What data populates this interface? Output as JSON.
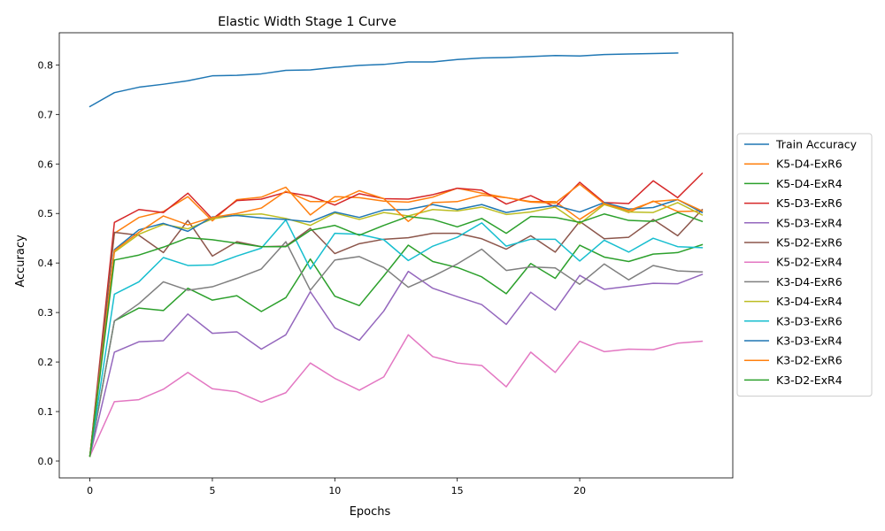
{
  "chart_data": {
    "type": "line",
    "title": "Elastic Width Stage 1 Curve",
    "xlabel": "Epochs",
    "ylabel": "Accuracy",
    "xlim": [
      -1.25,
      26.25
    ],
    "ylim": [
      -0.034,
      0.865
    ],
    "xticks": [
      0,
      5,
      10,
      15,
      20
    ],
    "yticks": [
      0.0,
      0.1,
      0.2,
      0.3,
      0.4,
      0.5,
      0.6,
      0.7,
      0.8
    ],
    "ytick_labels": [
      "0.0",
      "0.1",
      "0.2",
      "0.3",
      "0.4",
      "0.5",
      "0.6",
      "0.7",
      "0.8"
    ],
    "grid": false,
    "legend_position": "center-right-outside",
    "series": [
      {
        "name": "Train Accuracy",
        "color": "#1f77b4",
        "x": [
          0,
          1,
          2,
          3,
          4,
          5,
          6,
          7,
          8,
          9,
          10,
          11,
          12,
          13,
          14,
          15,
          16,
          17,
          18,
          19,
          20,
          21,
          22,
          23,
          24
        ],
        "values": [
          0.716,
          0.744,
          0.755,
          0.761,
          0.768,
          0.778,
          0.779,
          0.782,
          0.789,
          0.79,
          0.795,
          0.799,
          0.801,
          0.806,
          0.806,
          0.811,
          0.814,
          0.815,
          0.817,
          0.819,
          0.818,
          0.821,
          0.822,
          0.823,
          0.824
        ]
      },
      {
        "name": "K5-D4-ExR6",
        "color": "#ff7f0e",
        "x": [
          0,
          1,
          2,
          3,
          4,
          5,
          6,
          7,
          8,
          9,
          10,
          11,
          12,
          13,
          14,
          15,
          16,
          17,
          18,
          19,
          20,
          21,
          22,
          23,
          24,
          25
        ],
        "values": [
          0.01,
          0.46,
          0.492,
          0.504,
          0.534,
          0.485,
          0.528,
          0.533,
          0.553,
          0.497,
          0.534,
          0.532,
          0.525,
          0.523,
          0.533,
          0.551,
          0.541,
          0.532,
          0.524,
          0.524,
          0.488,
          0.52,
          0.502,
          0.525,
          0.504,
          0.505
        ]
      },
      {
        "name": "K5-D4-ExR4",
        "color": "#2ca02c",
        "x": [
          0,
          1,
          2,
          3,
          4,
          5,
          6,
          7,
          8,
          9,
          10,
          11,
          12,
          13,
          14,
          15,
          16,
          17,
          18,
          19,
          20,
          21,
          22,
          23,
          24,
          25
        ],
        "values": [
          0.01,
          0.283,
          0.309,
          0.304,
          0.349,
          0.325,
          0.334,
          0.302,
          0.33,
          0.408,
          0.333,
          0.314,
          0.374,
          0.436,
          0.403,
          0.391,
          0.372,
          0.338,
          0.399,
          0.369,
          0.436,
          0.412,
          0.403,
          0.418,
          0.421,
          0.437
        ]
      },
      {
        "name": "K5-D3-ExR6",
        "color": "#d62728",
        "x": [
          0,
          1,
          2,
          3,
          4,
          5,
          6,
          7,
          8,
          9,
          10,
          11,
          12,
          13,
          14,
          15,
          16,
          17,
          18,
          19,
          20,
          21,
          22,
          23,
          24,
          25
        ],
        "values": [
          0.01,
          0.482,
          0.508,
          0.502,
          0.541,
          0.489,
          0.526,
          0.529,
          0.543,
          0.535,
          0.517,
          0.54,
          0.53,
          0.529,
          0.538,
          0.551,
          0.547,
          0.519,
          0.536,
          0.513,
          0.563,
          0.522,
          0.52,
          0.566,
          0.532,
          0.581
        ]
      },
      {
        "name": "K5-D3-ExR4",
        "color": "#9467bd",
        "x": [
          0,
          1,
          2,
          3,
          4,
          5,
          6,
          7,
          8,
          9,
          10,
          11,
          12,
          13,
          14,
          15,
          16,
          17,
          18,
          19,
          20,
          21,
          22,
          23,
          24,
          25
        ],
        "values": [
          0.01,
          0.22,
          0.241,
          0.243,
          0.297,
          0.258,
          0.261,
          0.226,
          0.255,
          0.342,
          0.269,
          0.244,
          0.303,
          0.383,
          0.349,
          0.332,
          0.316,
          0.276,
          0.341,
          0.305,
          0.375,
          0.347,
          0.353,
          0.359,
          0.358,
          0.377
        ]
      },
      {
        "name": "K5-D2-ExR6",
        "color": "#8c564b",
        "x": [
          0,
          1,
          2,
          3,
          4,
          5,
          6,
          7,
          8,
          9,
          10,
          11,
          12,
          13,
          14,
          15,
          16,
          17,
          18,
          19,
          20,
          21,
          22,
          23,
          24,
          25
        ],
        "values": [
          0.01,
          0.462,
          0.456,
          0.421,
          0.486,
          0.414,
          0.443,
          0.433,
          0.434,
          0.47,
          0.419,
          0.439,
          0.448,
          0.451,
          0.46,
          0.46,
          0.449,
          0.428,
          0.455,
          0.422,
          0.484,
          0.449,
          0.452,
          0.488,
          0.455,
          0.508
        ]
      },
      {
        "name": "K5-D2-ExR4",
        "color": "#e377c2",
        "x": [
          0,
          1,
          2,
          3,
          4,
          5,
          6,
          7,
          8,
          9,
          10,
          11,
          12,
          13,
          14,
          15,
          16,
          17,
          18,
          19,
          20,
          21,
          22,
          23,
          24,
          25
        ],
        "values": [
          0.01,
          0.12,
          0.124,
          0.145,
          0.179,
          0.146,
          0.14,
          0.119,
          0.138,
          0.198,
          0.167,
          0.143,
          0.17,
          0.255,
          0.211,
          0.198,
          0.193,
          0.15,
          0.22,
          0.179,
          0.242,
          0.221,
          0.226,
          0.225,
          0.238,
          0.242
        ]
      },
      {
        "name": "K3-D4-ExR6",
        "color": "#7f7f7f",
        "x": [
          0,
          1,
          2,
          3,
          4,
          5,
          6,
          7,
          8,
          9,
          10,
          11,
          12,
          13,
          14,
          15,
          16,
          17,
          18,
          19,
          20,
          21,
          22,
          23,
          24,
          25
        ],
        "values": [
          0.01,
          0.283,
          0.318,
          0.362,
          0.345,
          0.352,
          0.369,
          0.388,
          0.443,
          0.345,
          0.406,
          0.413,
          0.391,
          0.351,
          0.373,
          0.398,
          0.428,
          0.385,
          0.392,
          0.39,
          0.357,
          0.398,
          0.366,
          0.395,
          0.384,
          0.382
        ]
      },
      {
        "name": "K3-D4-ExR4",
        "color": "#bcbd22",
        "x": [
          0,
          1,
          2,
          3,
          4,
          5,
          6,
          7,
          8,
          9,
          10,
          11,
          12,
          13,
          14,
          15,
          16,
          17,
          18,
          19,
          20,
          21,
          22,
          23,
          24,
          25
        ],
        "values": [
          0.01,
          0.422,
          0.458,
          0.478,
          0.469,
          0.489,
          0.497,
          0.499,
          0.49,
          0.476,
          0.501,
          0.488,
          0.502,
          0.495,
          0.508,
          0.505,
          0.513,
          0.498,
          0.503,
          0.513,
          0.479,
          0.518,
          0.503,
          0.502,
          0.522,
          0.497
        ]
      },
      {
        "name": "K3-D3-ExR6",
        "color": "#17becf",
        "x": [
          0,
          1,
          2,
          3,
          4,
          5,
          6,
          7,
          8,
          9,
          10,
          11,
          12,
          13,
          14,
          15,
          16,
          17,
          18,
          19,
          20,
          21,
          22,
          23,
          24,
          25
        ],
        "values": [
          0.01,
          0.337,
          0.362,
          0.411,
          0.395,
          0.396,
          0.414,
          0.43,
          0.487,
          0.388,
          0.46,
          0.458,
          0.447,
          0.405,
          0.434,
          0.452,
          0.481,
          0.434,
          0.448,
          0.448,
          0.404,
          0.446,
          0.422,
          0.45,
          0.433,
          0.431
        ]
      },
      {
        "name": "K3-D3-ExR4",
        "color": "#1f77b4",
        "x": [
          0,
          1,
          2,
          3,
          4,
          5,
          6,
          7,
          8,
          9,
          10,
          11,
          12,
          13,
          14,
          15,
          16,
          17,
          18,
          19,
          20,
          21,
          22,
          23,
          24,
          25
        ],
        "values": [
          0.01,
          0.427,
          0.467,
          0.48,
          0.464,
          0.493,
          0.496,
          0.491,
          0.488,
          0.483,
          0.503,
          0.492,
          0.507,
          0.508,
          0.518,
          0.508,
          0.518,
          0.502,
          0.51,
          0.516,
          0.503,
          0.522,
          0.509,
          0.512,
          0.528,
          0.502
        ]
      },
      {
        "name": "K3-D2-ExR6",
        "color": "#ff7f0e",
        "x": [
          0,
          1,
          2,
          3,
          4,
          5,
          6,
          7,
          8,
          9,
          10,
          11,
          12,
          13,
          14,
          15,
          16,
          17,
          18,
          19,
          20,
          21,
          22,
          23,
          24,
          25
        ],
        "values": [
          0.01,
          0.425,
          0.462,
          0.495,
          0.477,
          0.492,
          0.5,
          0.511,
          0.545,
          0.524,
          0.524,
          0.546,
          0.53,
          0.484,
          0.522,
          0.524,
          0.537,
          0.532,
          0.523,
          0.521,
          0.559,
          0.52,
          0.506,
          0.524,
          0.528,
          0.505
        ]
      },
      {
        "name": "K3-D2-ExR4",
        "color": "#2ca02c",
        "x": [
          0,
          1,
          2,
          3,
          4,
          5,
          6,
          7,
          8,
          9,
          10,
          11,
          12,
          13,
          14,
          15,
          16,
          17,
          18,
          19,
          20,
          21,
          22,
          23,
          24,
          25
        ],
        "values": [
          0.01,
          0.406,
          0.416,
          0.432,
          0.451,
          0.447,
          0.44,
          0.433,
          0.433,
          0.466,
          0.476,
          0.456,
          0.476,
          0.494,
          0.488,
          0.473,
          0.49,
          0.46,
          0.494,
          0.492,
          0.482,
          0.499,
          0.486,
          0.484,
          0.502,
          0.484
        ]
      }
    ]
  }
}
